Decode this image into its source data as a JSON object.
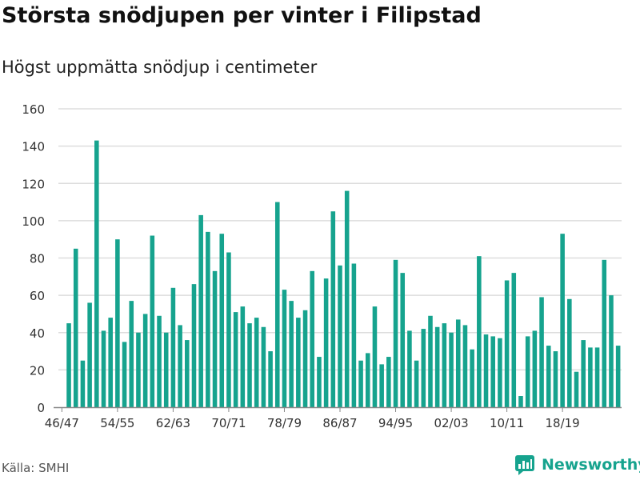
{
  "title": "Största snödjupen per vinter i Filipstad",
  "subtitle": "Högst uppmätta snödjup i centimeter",
  "source": "Källa: SMHI",
  "brand": "Newsworthy",
  "colors": {
    "bar": "#16a38e",
    "grid": "#dddddd",
    "axis": "#888888",
    "brand": "#16a38e"
  },
  "chart_data": {
    "type": "bar",
    "title": "Största snödjupen per vinter i Filipstad",
    "subtitle": "Högst uppmätta snödjup i centimeter",
    "xlabel": "",
    "ylabel": "",
    "ylim": [
      0,
      160
    ],
    "yticks": [
      0,
      20,
      40,
      60,
      80,
      100,
      120,
      140,
      160
    ],
    "grid": true,
    "categories": [
      "46/47",
      "47/48",
      "48/49",
      "49/50",
      "50/51",
      "51/52",
      "52/53",
      "53/54",
      "54/55",
      "55/56",
      "56/57",
      "57/58",
      "58/59",
      "59/60",
      "60/61",
      "61/62",
      "62/63",
      "63/64",
      "64/65",
      "65/66",
      "66/67",
      "67/68",
      "68/69",
      "69/70",
      "70/71",
      "71/72",
      "72/73",
      "73/74",
      "74/75",
      "75/76",
      "76/77",
      "77/78",
      "78/79",
      "79/80",
      "80/81",
      "81/82",
      "82/83",
      "83/84",
      "84/85",
      "85/86",
      "86/87",
      "87/88",
      "88/89",
      "89/90",
      "90/91",
      "91/92",
      "92/93",
      "93/94",
      "94/95",
      "95/96",
      "96/97",
      "97/98",
      "98/99",
      "99/00",
      "00/01",
      "01/02",
      "02/03",
      "03/04",
      "04/05",
      "05/06",
      "06/07",
      "07/08",
      "08/09",
      "09/10",
      "10/11",
      "11/12",
      "12/13",
      "13/14",
      "14/15",
      "15/16",
      "16/17",
      "17/18",
      "18/19",
      "19/20",
      "20/21",
      "21/22",
      "22/23",
      "23/24",
      "24/25",
      "25/26",
      "26/27"
    ],
    "values": [
      null,
      45,
      85,
      25,
      56,
      143,
      41,
      48,
      90,
      35,
      57,
      40,
      50,
      92,
      49,
      40,
      64,
      44,
      36,
      66,
      103,
      94,
      73,
      93,
      83,
      51,
      54,
      45,
      48,
      43,
      30,
      110,
      63,
      57,
      48,
      52,
      73,
      27,
      69,
      105,
      76,
      116,
      77,
      25,
      29,
      54,
      23,
      27,
      79,
      72,
      41,
      25,
      42,
      49,
      43,
      45,
      40,
      47,
      44,
      31,
      81,
      39,
      38,
      37,
      68,
      72,
      6,
      38,
      41,
      59,
      33,
      30,
      93,
      58,
      19,
      36,
      32,
      32,
      79,
      60,
      33
    ],
    "xtick_labels": [
      "46/47",
      "54/55",
      "62/63",
      "70/71",
      "78/79",
      "86/87",
      "94/95",
      "02/03",
      "10/11",
      "18/19"
    ]
  }
}
